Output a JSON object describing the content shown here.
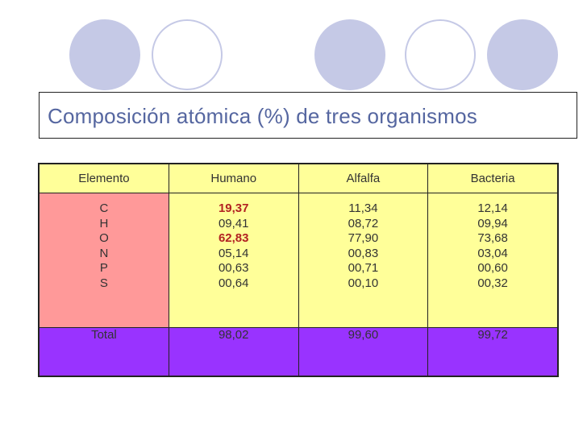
{
  "title": "Composición atómica (%) de tres organismos",
  "table": {
    "headers": [
      "Elemento",
      "Humano",
      "Alfalfa",
      "Bacteria"
    ],
    "elements": [
      "C",
      "H",
      "O",
      "N",
      "P",
      "S"
    ],
    "humano": [
      "19,37",
      "09,41",
      "62,83",
      "05,14",
      "00,63",
      "00,64"
    ],
    "alfalfa": [
      "11,34",
      "08,72",
      "77,90",
      "00,83",
      "00,71",
      "00,10"
    ],
    "bacteria": [
      "12,14",
      "09,94",
      "73,68",
      "03,04",
      "00,60",
      "00,32"
    ],
    "total_label": "Total",
    "totals": [
      "98,02",
      "99,60",
      "99,72"
    ]
  },
  "colors": {
    "title_text": "#5566a0",
    "decor_circle": "#c5c9e6",
    "element_column": "#ff9999",
    "data_cells": "#ffff99",
    "total_row": "#9933ff",
    "highlight_text": "#b22222"
  }
}
